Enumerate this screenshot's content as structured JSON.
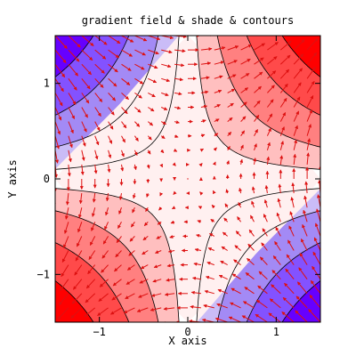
{
  "chart_data": {
    "type": "heatmap",
    "title": "gradient field & shade & contours",
    "xlabel": "X axis",
    "ylabel": "Y axis",
    "xlim": [
      -1.5,
      1.5
    ],
    "ylim": [
      -1.5,
      1.5
    ],
    "x_ticks": [
      {
        "value": -1,
        "label": "−1"
      },
      {
        "value": 0,
        "label": "0"
      },
      {
        "value": 1,
        "label": "1"
      }
    ],
    "y_ticks": [
      {
        "value": -1,
        "label": "−1"
      },
      {
        "value": 0,
        "label": "0"
      },
      {
        "value": 1,
        "label": "1"
      }
    ],
    "field": "z = x*y",
    "contour_levels": [
      -2.25,
      -1.6,
      -1.0,
      -0.5,
      -0.15,
      0.15,
      0.5,
      1.0,
      1.6,
      2.25
    ],
    "fill_colors": [
      "#6600ff",
      "#8352ff",
      "#a38af5",
      "#cabcf7",
      "#fff0f0",
      "#ffbfbf",
      "#ff8080",
      "#ff4a4a",
      "#ff0000"
    ],
    "arrow_grid": 21,
    "arrow_color": "#dd1111",
    "contour_color": "#000000",
    "grid": false
  }
}
